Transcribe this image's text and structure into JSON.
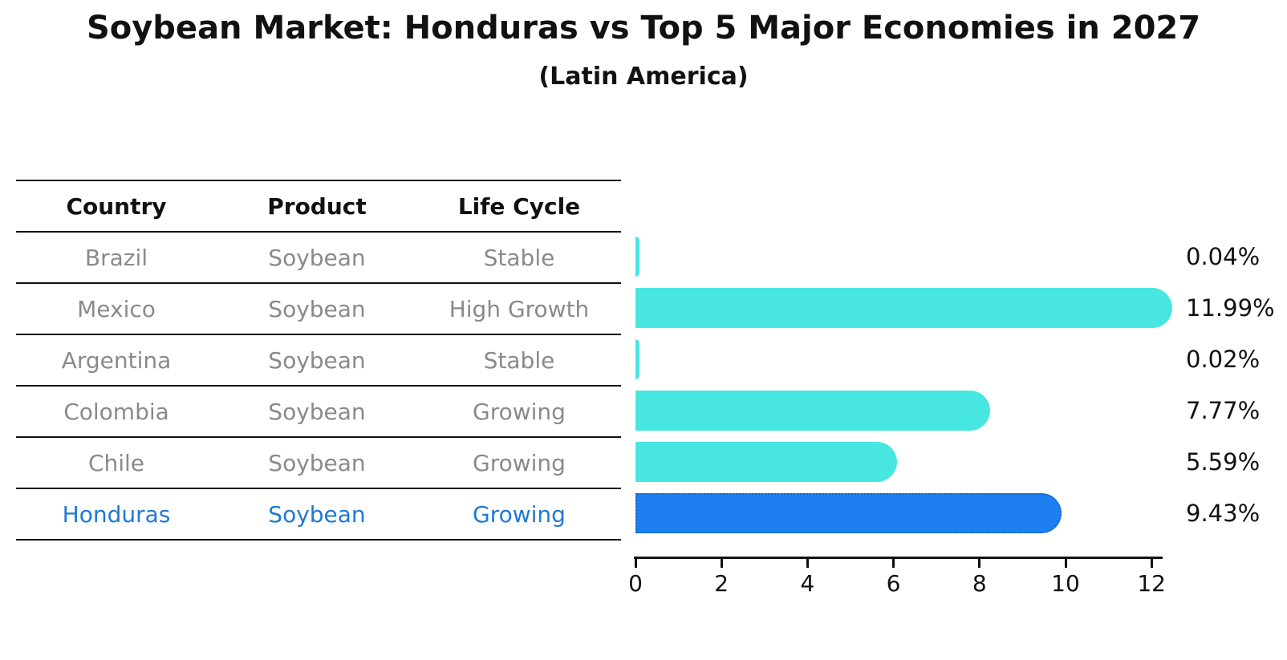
{
  "title": "Soybean Market: Honduras vs Top 5 Major Economies in 2027",
  "subtitle": "(Latin America)",
  "table": {
    "headers": [
      "Country",
      "Product",
      "Life Cycle"
    ],
    "rows": [
      {
        "country": "Brazil",
        "product": "Soybean",
        "life_cycle": "Stable",
        "highlight": false
      },
      {
        "country": "Mexico",
        "product": "Soybean",
        "life_cycle": "High Growth",
        "highlight": false
      },
      {
        "country": "Argentina",
        "product": "Soybean",
        "life_cycle": "Stable",
        "highlight": false
      },
      {
        "country": "Colombia",
        "product": "Soybean",
        "life_cycle": "Growing",
        "highlight": false
      },
      {
        "country": "Chile",
        "product": "Soybean",
        "life_cycle": "Growing",
        "highlight": false
      },
      {
        "country": "Honduras",
        "product": "Soybean",
        "life_cycle": "Growing",
        "highlight": true
      }
    ]
  },
  "chart_data": {
    "type": "bar",
    "orientation": "horizontal",
    "title": "Soybean Market: Honduras vs Top 5 Major Economies in 2027",
    "subtitle": "(Latin America)",
    "categories": [
      "Brazil",
      "Mexico",
      "Argentina",
      "Colombia",
      "Chile",
      "Honduras"
    ],
    "values": [
      0.04,
      11.99,
      0.02,
      7.77,
      5.59,
      9.43
    ],
    "value_labels": [
      "0.04%",
      "11.99%",
      "0.02%",
      "7.77%",
      "5.59%",
      "9.43%"
    ],
    "x_ticks": [
      0,
      2,
      4,
      6,
      8,
      10,
      12
    ],
    "xlim": [
      0,
      12.25
    ],
    "grid": false,
    "legend_position": "none",
    "highlight_index": 5,
    "bar_color": "#48e6e1",
    "highlight_bar_color": "#1e80f0",
    "highlight_border_color": "#1565c8"
  },
  "colors": {
    "bar": "#48e6e1",
    "highlight_bar": "#1e80f0",
    "highlight_border": "#1565c8",
    "highlight_text": "#1f7ad0",
    "muted_text": "#8a8a8a",
    "axis": "#111111"
  }
}
